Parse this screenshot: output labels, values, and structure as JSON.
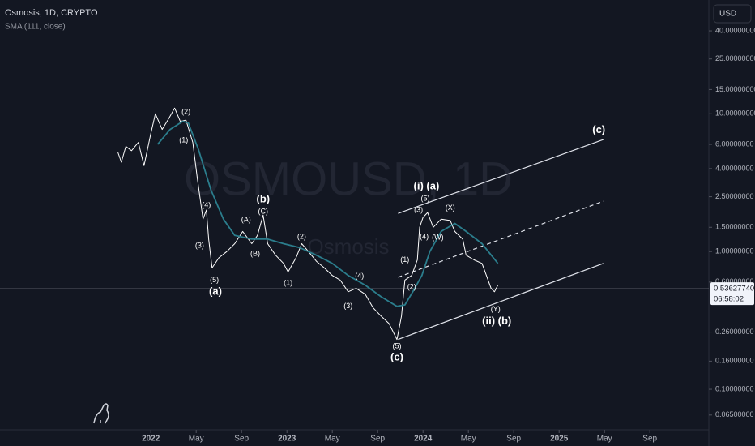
{
  "watermark": {
    "symbol": "OSMOUSD, 1D",
    "name": "Osmosis"
  },
  "chart_data": {
    "type": "line",
    "log_scale": true,
    "currency": "USD",
    "xlim": [
      -13.3,
      49.2
    ],
    "ylim": [
      0.0508,
      67
    ],
    "xticks": [
      {
        "value": 0,
        "label": "2022"
      },
      {
        "value": 4,
        "label": "May"
      },
      {
        "value": 8,
        "label": "Sep"
      },
      {
        "value": 12,
        "label": "2023"
      },
      {
        "value": 16,
        "label": "May"
      },
      {
        "value": 20,
        "label": "Sep"
      },
      {
        "value": 24,
        "label": "2024"
      },
      {
        "value": 28,
        "label": "May"
      },
      {
        "value": 32,
        "label": "Sep"
      },
      {
        "value": 36,
        "label": "2025"
      },
      {
        "value": 40,
        "label": "May"
      },
      {
        "value": 44,
        "label": "Sep"
      }
    ],
    "yticks": [
      {
        "value": 40,
        "label": "40.00000000"
      },
      {
        "value": 25,
        "label": "25.00000000"
      },
      {
        "value": 15,
        "label": "15.00000000"
      },
      {
        "value": 10,
        "label": "10.00000000"
      },
      {
        "value": 6,
        "label": "6.00000000"
      },
      {
        "value": 4,
        "label": "4.00000000"
      },
      {
        "value": 2.5,
        "label": "2.50000000"
      },
      {
        "value": 1.5,
        "label": "1.50000000"
      },
      {
        "value": 1,
        "label": "1.00000000"
      },
      {
        "value": 0.6,
        "label": "0.60000000"
      },
      {
        "value": 0.26,
        "label": "0.26000000"
      },
      {
        "value": 0.16,
        "label": "0.16000000"
      },
      {
        "value": 0.1,
        "label": "0.10000000"
      },
      {
        "value": 0.065,
        "label": "0.06500000"
      }
    ],
    "series": [
      {
        "name": "Osmosis, 1D, CRYPTO",
        "color": "#ffffff",
        "x": [
          -2.9,
          -2.6,
          -2.2,
          -1.7,
          -1.1,
          -0.6,
          0,
          0.4,
          1.0,
          1.6,
          2.1,
          2.6,
          3.1,
          3.7,
          4.1,
          4.6,
          4.9,
          5.1,
          5.4,
          6.0,
          6.7,
          7.4,
          8.1,
          8.9,
          9.4,
          9.9,
          10.3,
          11.0,
          11.7,
          12.1,
          12.8,
          13.3,
          13.9,
          14.6,
          15.3,
          16.0,
          16.7,
          17.4,
          18.1,
          18.9,
          19.6,
          20.3,
          21.0,
          21.7,
          22.1,
          22.4,
          23.0,
          23.5,
          23.7,
          24.0,
          24.4,
          24.9,
          25.6,
          26.4,
          26.8,
          27.5,
          27.8,
          28.5,
          29.2,
          30.0,
          30.3,
          30.6
        ],
        "values": [
          5.24,
          4.45,
          5.8,
          5.4,
          6.2,
          4.2,
          7.2,
          10,
          7.7,
          9.3,
          11,
          8.8,
          9.0,
          6.2,
          3.39,
          1.72,
          2.0,
          1.23,
          0.76,
          0.9,
          1.0,
          1.14,
          1.4,
          1.14,
          1.31,
          1.84,
          1.14,
          0.94,
          0.82,
          0.71,
          0.9,
          1.14,
          1.0,
          0.85,
          0.76,
          0.67,
          0.62,
          0.51,
          0.54,
          0.49,
          0.39,
          0.34,
          0.3,
          0.23,
          0.34,
          0.62,
          0.67,
          0.87,
          1.5,
          1.77,
          1.92,
          1.5,
          1.72,
          1.68,
          1.4,
          1.23,
          0.94,
          0.87,
          0.82,
          0.54,
          0.51,
          0.57
        ]
      },
      {
        "name": "SMA (111, close)",
        "color": "#2b7d8c",
        "x": [
          0.6,
          1.7,
          2.8,
          3.3,
          4.2,
          5.3,
          6.4,
          7.4,
          8.9,
          10.3,
          11.7,
          13.1,
          14.6,
          16.0,
          17.4,
          18.9,
          20.3,
          21.7,
          22.4,
          23.1,
          23.9,
          24.6,
          25.6,
          26.8,
          27.8,
          29.2,
          30.6
        ],
        "values": [
          6.0,
          7.7,
          8.8,
          8.6,
          5.5,
          2.8,
          1.72,
          1.31,
          1.23,
          1.23,
          1.14,
          1.07,
          0.94,
          0.82,
          0.67,
          0.57,
          0.47,
          0.4,
          0.41,
          0.51,
          0.67,
          1.0,
          1.4,
          1.6,
          1.4,
          1.14,
          0.82
        ]
      }
    ],
    "current_price": {
      "value": 0.5362774,
      "label": "0.53627740",
      "countdown": "06:58:02"
    },
    "trend_lines": [
      {
        "x": [
          21.8,
          39.9
        ],
        "values": [
          1.89,
          6.5
        ],
        "style": "solid"
      },
      {
        "x": [
          21.8,
          39.9
        ],
        "values": [
          0.65,
          2.32
        ],
        "style": "dashed"
      },
      {
        "x": [
          21.8,
          39.9
        ],
        "values": [
          0.23,
          0.82
        ],
        "style": "solid"
      }
    ],
    "annotations": [
      {
        "text": "(2)",
        "x": 3.1,
        "y": 10.3,
        "bold": false
      },
      {
        "text": "(1)",
        "x": 2.9,
        "y": 6.4,
        "bold": false
      },
      {
        "text": "(4)",
        "x": 4.9,
        "y": 2.17,
        "bold": false
      },
      {
        "text": "(3)",
        "x": 4.3,
        "y": 1.1,
        "bold": false
      },
      {
        "text": "(5)",
        "x": 5.6,
        "y": 0.62,
        "bold": false
      },
      {
        "text": "(a)",
        "x": 5.7,
        "y": 0.51,
        "bold": true
      },
      {
        "text": "(A)",
        "x": 8.4,
        "y": 1.7,
        "bold": false
      },
      {
        "text": "(B)",
        "x": 9.2,
        "y": 0.96,
        "bold": false
      },
      {
        "text": "(C)",
        "x": 9.9,
        "y": 1.95,
        "bold": false
      },
      {
        "text": "(b)",
        "x": 9.9,
        "y": 2.38,
        "bold": true
      },
      {
        "text": "(2)",
        "x": 13.3,
        "y": 1.28,
        "bold": false
      },
      {
        "text": "(1)",
        "x": 12.1,
        "y": 0.59,
        "bold": false
      },
      {
        "text": "(4)",
        "x": 18.4,
        "y": 0.66,
        "bold": false
      },
      {
        "text": "(3)",
        "x": 17.4,
        "y": 0.4,
        "bold": false
      },
      {
        "text": "(5)",
        "x": 21.7,
        "y": 0.205,
        "bold": false
      },
      {
        "text": "(c)",
        "x": 21.7,
        "y": 0.17,
        "bold": true
      },
      {
        "text": "(1)",
        "x": 22.4,
        "y": 0.87,
        "bold": false
      },
      {
        "text": "(2)",
        "x": 23.0,
        "y": 0.55,
        "bold": false
      },
      {
        "text": "(i) (a)",
        "x": 24.3,
        "y": 2.96,
        "bold": true
      },
      {
        "text": "(3)",
        "x": 23.6,
        "y": 2.0,
        "bold": false
      },
      {
        "text": "(5)",
        "x": 24.2,
        "y": 2.41,
        "bold": false
      },
      {
        "text": "(4)",
        "x": 24.1,
        "y": 1.28,
        "bold": false
      },
      {
        "text": "(X)",
        "x": 26.4,
        "y": 2.06,
        "bold": false
      },
      {
        "text": "(W)",
        "x": 25.3,
        "y": 1.26,
        "bold": false
      },
      {
        "text": "(Y)",
        "x": 30.4,
        "y": 0.38,
        "bold": false
      },
      {
        "text": "(ii) (b)",
        "x": 30.5,
        "y": 0.31,
        "bold": true
      },
      {
        "text": "(c)",
        "x": 39.5,
        "y": 7.6,
        "bold": true
      }
    ]
  }
}
